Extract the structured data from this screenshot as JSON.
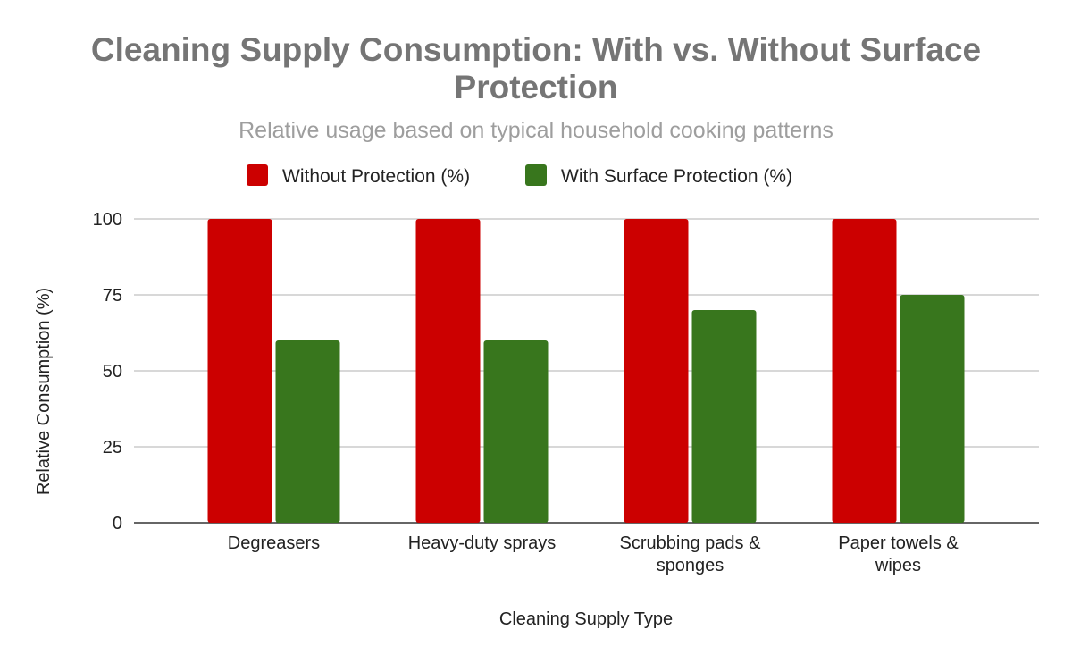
{
  "chart_data": {
    "type": "bar",
    "title_lines": [
      "Cleaning Supply Consumption: With vs. Without Surface",
      "Protection"
    ],
    "subtitle": "Relative usage based on typical household cooking patterns",
    "categories": [
      [
        "Degreasers"
      ],
      [
        "Heavy-duty sprays"
      ],
      [
        "Scrubbing pads &",
        "sponges"
      ],
      [
        "Paper towels &",
        "wipes"
      ]
    ],
    "series": [
      {
        "name": "Without Protection (%)",
        "color": "#cc0000",
        "values": [
          100,
          100,
          100,
          100
        ]
      },
      {
        "name": "With Surface Protection (%)",
        "color": "#38761d",
        "values": [
          60,
          60,
          70,
          75
        ]
      }
    ],
    "xlabel": "Cleaning Supply Type",
    "ylabel": "Relative Consumption (%)",
    "ylim": [
      0,
      100
    ],
    "yticks": [
      0,
      25,
      50,
      75,
      100
    ],
    "grid": true,
    "legend": "top"
  }
}
